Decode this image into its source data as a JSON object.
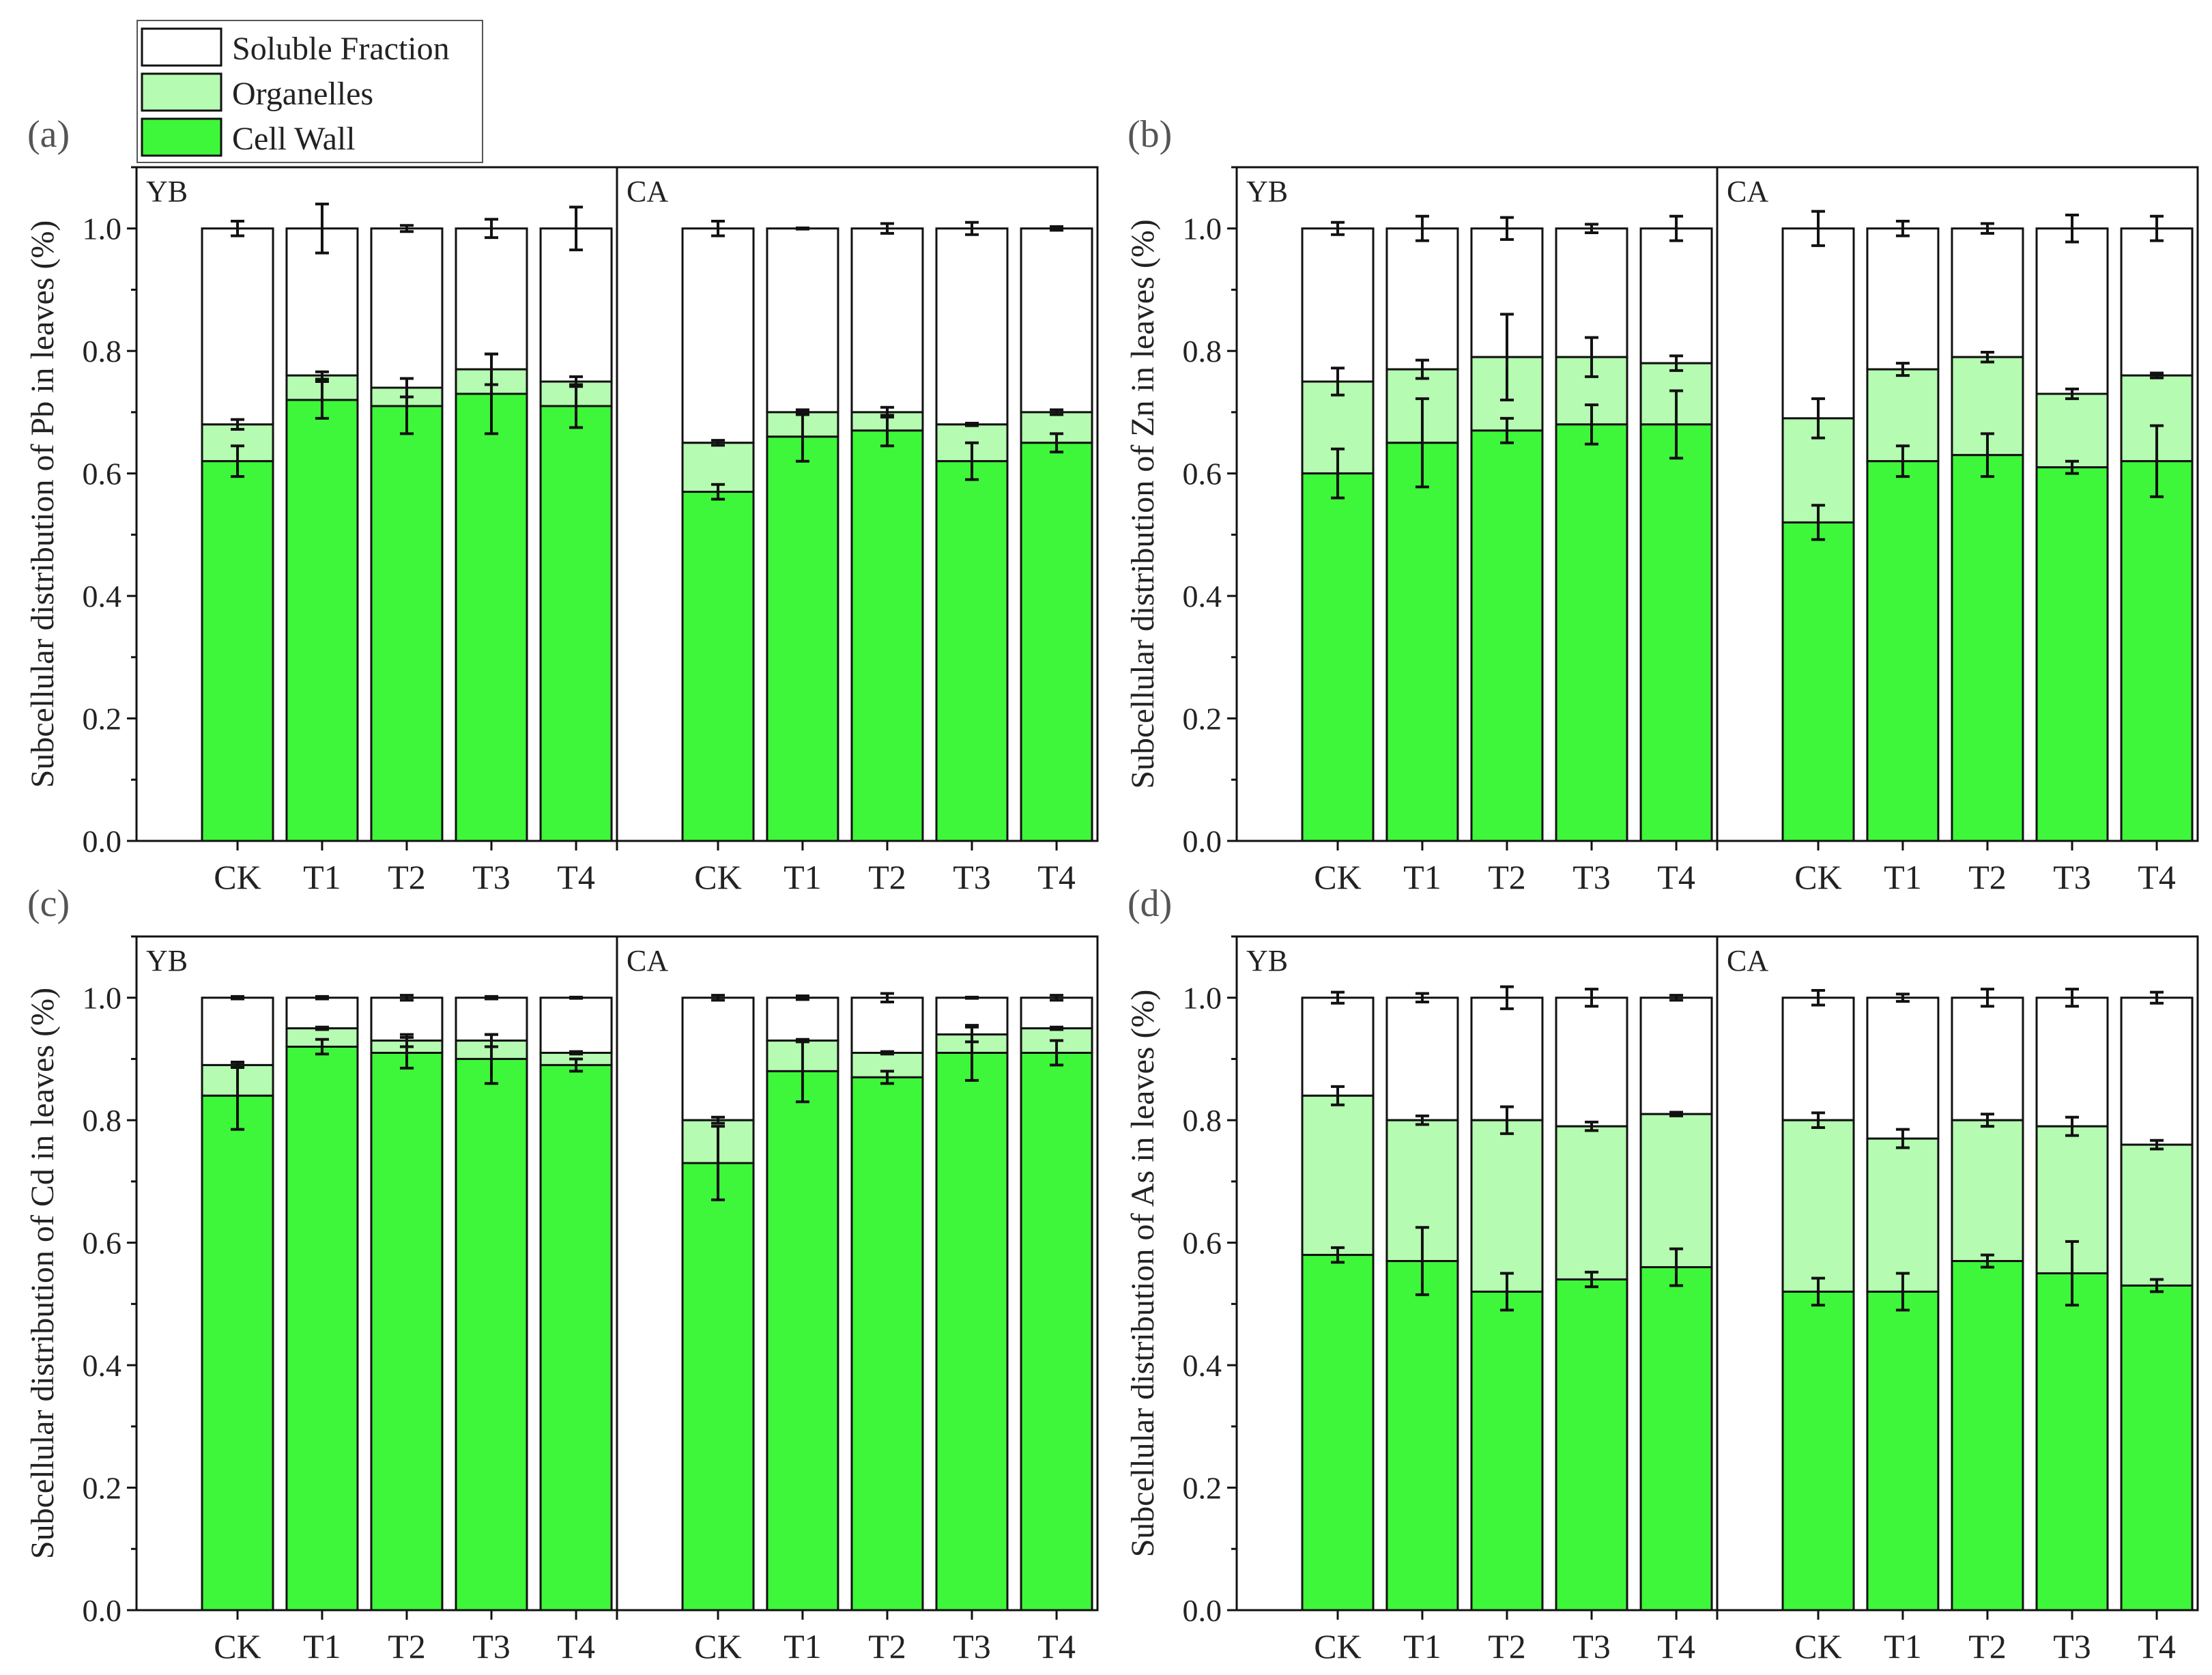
{
  "legend": [
    {
      "key": "soluble",
      "label": "Soluble Fraction",
      "color": "#ffffff"
    },
    {
      "key": "organelles",
      "label": "Organelles",
      "color": "#b5fbb1"
    },
    {
      "key": "cellwall",
      "label": "Cell Wall",
      "color": "#3ef73a"
    }
  ],
  "chart_data": [
    {
      "type": "bar",
      "stacked": true,
      "panel": "(a)",
      "ylabel": "Subcellular distribution of Pb in leaves (%)",
      "ylim": [
        0,
        1.1
      ],
      "yticks": [
        "0.0",
        "0.2",
        "0.4",
        "0.6",
        "0.8",
        "1.0"
      ],
      "groups": [
        {
          "name": "YB",
          "categories": [
            "CK",
            "T1",
            "T2",
            "T3",
            "T4"
          ],
          "cellwall": [
            0.62,
            0.72,
            0.71,
            0.73,
            0.71
          ],
          "cellwall_err": [
            0.025,
            0.03,
            0.045,
            0.065,
            0.035
          ],
          "organelles_top": [
            0.68,
            0.76,
            0.74,
            0.77,
            0.75
          ],
          "organelles_err": [
            0.008,
            0.006,
            0.015,
            0.025,
            0.008
          ],
          "total": [
            1.0,
            1.0,
            1.0,
            1.0,
            1.0
          ],
          "total_err": [
            0.012,
            0.04,
            0.005,
            0.015,
            0.035
          ]
        },
        {
          "name": "CA",
          "categories": [
            "CK",
            "T1",
            "T2",
            "T3",
            "T4"
          ],
          "cellwall": [
            0.57,
            0.66,
            0.67,
            0.62,
            0.65
          ],
          "cellwall_err": [
            0.012,
            0.04,
            0.025,
            0.03,
            0.015
          ],
          "organelles_top": [
            0.65,
            0.7,
            0.7,
            0.68,
            0.7
          ],
          "organelles_err": [
            0.004,
            0.004,
            0.008,
            0.002,
            0.004
          ],
          "total": [
            1.0,
            1.0,
            1.0,
            1.0,
            1.0
          ],
          "total_err": [
            0.012,
            0.001,
            0.008,
            0.01,
            0.003
          ]
        }
      ]
    },
    {
      "type": "bar",
      "stacked": true,
      "panel": "(b)",
      "ylabel": "Subcellular distribution of Zn in leaves (%)",
      "ylim": [
        0,
        1.1
      ],
      "yticks": [
        "0.0",
        "0.2",
        "0.4",
        "0.6",
        "0.8",
        "1.0"
      ],
      "groups": [
        {
          "name": "YB",
          "categories": [
            "CK",
            "T1",
            "T2",
            "T3",
            "T4"
          ],
          "cellwall": [
            0.6,
            0.65,
            0.67,
            0.68,
            0.68
          ],
          "cellwall_err": [
            0.04,
            0.072,
            0.02,
            0.032,
            0.055
          ],
          "organelles_top": [
            0.75,
            0.77,
            0.79,
            0.79,
            0.78
          ],
          "organelles_err": [
            0.022,
            0.015,
            0.07,
            0.032,
            0.012
          ],
          "total": [
            1.0,
            1.0,
            1.0,
            1.0,
            1.0
          ],
          "total_err": [
            0.01,
            0.02,
            0.018,
            0.007,
            0.02
          ]
        },
        {
          "name": "CA",
          "categories": [
            "CK",
            "T1",
            "T2",
            "T3",
            "T4"
          ],
          "cellwall": [
            0.52,
            0.62,
            0.63,
            0.61,
            0.62
          ],
          "cellwall_err": [
            0.028,
            0.025,
            0.035,
            0.01,
            0.058
          ],
          "organelles_top": [
            0.69,
            0.77,
            0.79,
            0.73,
            0.76
          ],
          "organelles_err": [
            0.032,
            0.01,
            0.008,
            0.008,
            0.004
          ],
          "total": [
            1.0,
            1.0,
            1.0,
            1.0,
            1.0
          ],
          "total_err": [
            0.028,
            0.012,
            0.008,
            0.022,
            0.02
          ]
        }
      ]
    },
    {
      "type": "bar",
      "stacked": true,
      "panel": "(c)",
      "ylabel": "Subcellular distribution of Cd in leaves (%)",
      "ylim": [
        0,
        1.1
      ],
      "yticks": [
        "0.0",
        "0.2",
        "0.4",
        "0.6",
        "0.8",
        "1.0"
      ],
      "groups": [
        {
          "name": "YB",
          "categories": [
            "CK",
            "T1",
            "T2",
            "T3",
            "T4"
          ],
          "cellwall": [
            0.84,
            0.92,
            0.91,
            0.9,
            0.89
          ],
          "cellwall_err": [
            0.055,
            0.012,
            0.025,
            0.04,
            0.01
          ],
          "organelles_top": [
            0.89,
            0.95,
            0.93,
            0.93,
            0.91
          ],
          "organelles_err": [
            0.004,
            0.002,
            0.01,
            0.01,
            0.002
          ],
          "total": [
            1.0,
            1.0,
            1.0,
            1.0,
            1.0
          ],
          "total_err": [
            0.002,
            0.002,
            0.004,
            0.002,
            0.001
          ]
        },
        {
          "name": "CA",
          "categories": [
            "CK",
            "T1",
            "T2",
            "T3",
            "T4"
          ],
          "cellwall": [
            0.73,
            0.88,
            0.87,
            0.91,
            0.91
          ],
          "cellwall_err": [
            0.06,
            0.05,
            0.01,
            0.045,
            0.02
          ],
          "organelles_top": [
            0.8,
            0.93,
            0.91,
            0.94,
            0.95
          ],
          "organelles_err": [
            0.005,
            0.002,
            0.002,
            0.012,
            0.002
          ],
          "total": [
            1.0,
            1.0,
            1.0,
            1.0,
            1.0
          ],
          "total_err": [
            0.004,
            0.003,
            0.007,
            0.001,
            0.004
          ]
        }
      ]
    },
    {
      "type": "bar",
      "stacked": true,
      "panel": "(d)",
      "ylabel": "Subcellular distribution of As in leaves (%)",
      "ylim": [
        0,
        1.1
      ],
      "yticks": [
        "0.0",
        "0.2",
        "0.4",
        "0.6",
        "0.8",
        "1.0"
      ],
      "groups": [
        {
          "name": "YB",
          "categories": [
            "CK",
            "T1",
            "T2",
            "T3",
            "T4"
          ],
          "cellwall": [
            0.58,
            0.57,
            0.52,
            0.54,
            0.56
          ],
          "cellwall_err": [
            0.012,
            0.055,
            0.03,
            0.012,
            0.03
          ],
          "organelles_top": [
            0.84,
            0.8,
            0.8,
            0.79,
            0.81
          ],
          "organelles_err": [
            0.015,
            0.007,
            0.022,
            0.007,
            0.003
          ],
          "total": [
            1.0,
            1.0,
            1.0,
            1.0,
            1.0
          ],
          "total_err": [
            0.009,
            0.007,
            0.018,
            0.014,
            0.004
          ]
        },
        {
          "name": "CA",
          "categories": [
            "CK",
            "T1",
            "T2",
            "T3",
            "T4"
          ],
          "cellwall": [
            0.52,
            0.52,
            0.57,
            0.55,
            0.53
          ],
          "cellwall_err": [
            0.022,
            0.03,
            0.01,
            0.052,
            0.01
          ],
          "organelles_top": [
            0.8,
            0.77,
            0.8,
            0.79,
            0.76
          ],
          "organelles_err": [
            0.012,
            0.015,
            0.01,
            0.015,
            0.007
          ],
          "total": [
            1.0,
            1.0,
            1.0,
            1.0,
            1.0
          ],
          "total_err": [
            0.012,
            0.006,
            0.014,
            0.014,
            0.009
          ]
        }
      ]
    }
  ]
}
